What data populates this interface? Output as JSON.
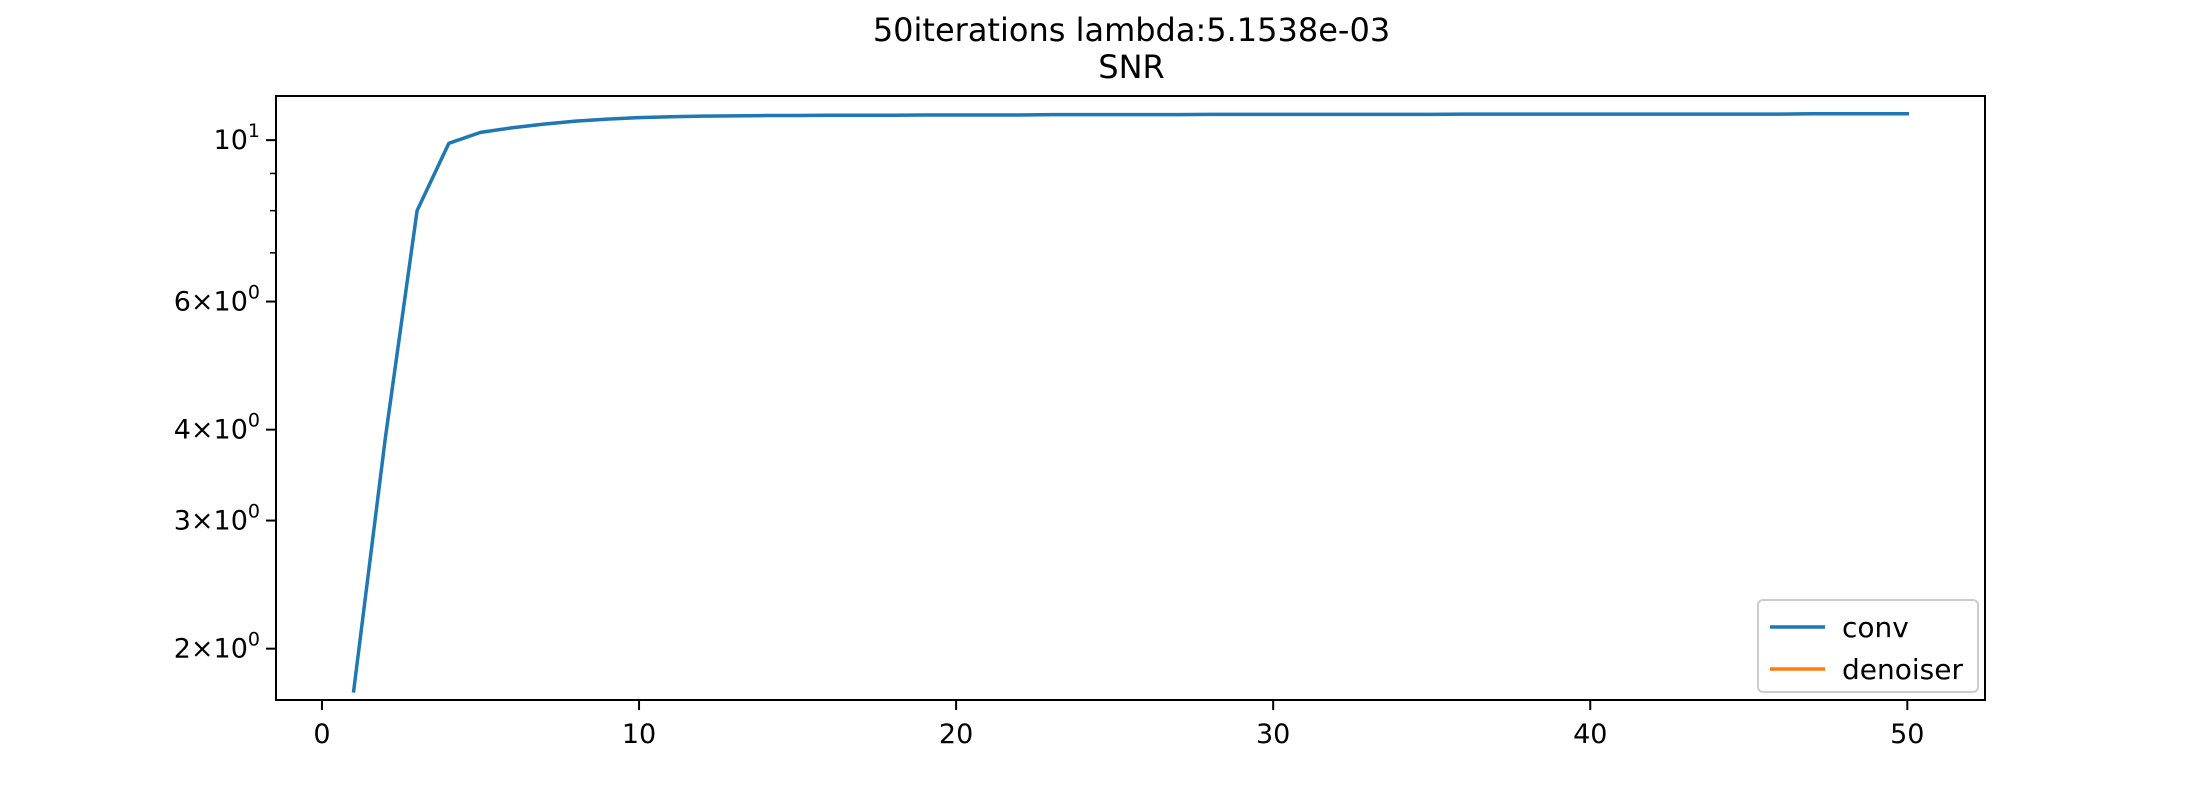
{
  "chart_data": {
    "type": "line",
    "title": "50iterations lambda:5.1538e-03",
    "subtitle": "SNR",
    "xlabel": "",
    "ylabel": "",
    "xlim": [
      -1.45,
      52.45
    ],
    "ylim": [
      1.7,
      11.5
    ],
    "yscale": "log",
    "grid": false,
    "legend_position": "lower-right",
    "x_ticks": [
      0,
      10,
      20,
      30,
      40,
      50
    ],
    "y_ticks": [
      {
        "value": 2,
        "mant": "2",
        "exp": "0"
      },
      {
        "value": 3,
        "mant": "3",
        "exp": "0"
      },
      {
        "value": 4,
        "mant": "4",
        "exp": "0"
      },
      {
        "value": 6,
        "mant": "6",
        "exp": "0"
      },
      {
        "value": 10,
        "mant": "",
        "exp": "1"
      }
    ],
    "y_minor_ticks": [
      7,
      8,
      9
    ],
    "series": [
      {
        "name": "conv",
        "color": "#1f77b4",
        "x": [
          1,
          2,
          3,
          4,
          5,
          6,
          7,
          8,
          9,
          10,
          11,
          12,
          13,
          14,
          15,
          16,
          17,
          18,
          19,
          20,
          21,
          22,
          23,
          24,
          25,
          26,
          27,
          28,
          29,
          30,
          31,
          32,
          33,
          34,
          35,
          36,
          37,
          38,
          39,
          40,
          41,
          42,
          43,
          44,
          45,
          46,
          47,
          48,
          49,
          50
        ],
        "y": [
          1.75,
          3.9,
          8.0,
          9.9,
          10.25,
          10.4,
          10.52,
          10.62,
          10.69,
          10.74,
          10.77,
          10.79,
          10.8,
          10.81,
          10.81,
          10.82,
          10.82,
          10.82,
          10.83,
          10.83,
          10.83,
          10.83,
          10.84,
          10.84,
          10.84,
          10.84,
          10.84,
          10.85,
          10.85,
          10.85,
          10.85,
          10.85,
          10.85,
          10.85,
          10.85,
          10.86,
          10.86,
          10.86,
          10.86,
          10.86,
          10.86,
          10.86,
          10.86,
          10.86,
          10.86,
          10.86,
          10.87,
          10.87,
          10.87,
          10.87
        ]
      },
      {
        "name": "denoiser",
        "color": "#ff7f0e",
        "x": [],
        "y": []
      }
    ]
  }
}
